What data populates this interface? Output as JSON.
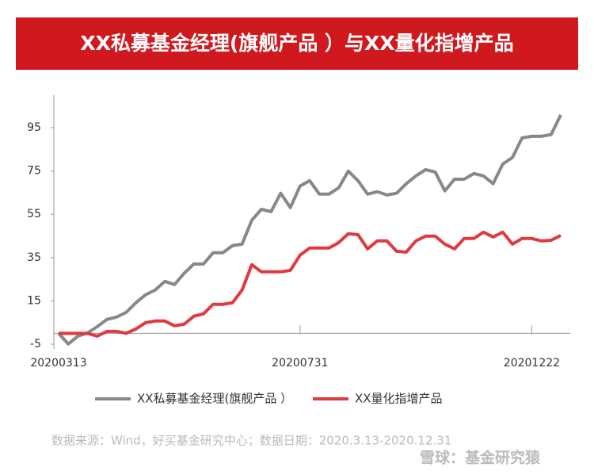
{
  "chart_data": {
    "type": "line",
    "title": "XX私募基金经理(旗舰产品 ）与XX量化指增产品",
    "categories": [
      "20200313",
      null,
      null,
      null,
      null,
      null,
      null,
      null,
      null,
      null,
      null,
      null,
      null,
      null,
      null,
      null,
      null,
      null,
      null,
      null,
      null,
      null,
      null,
      null,
      null,
      "20200731",
      null,
      null,
      null,
      null,
      null,
      null,
      null,
      null,
      null,
      null,
      null,
      null,
      null,
      null,
      null,
      null,
      null,
      null,
      null,
      null,
      null,
      null,
      null,
      "20201222",
      null,
      null,
      null
    ],
    "series": [
      {
        "name": "XX私募基金经理(旗舰产品 ）",
        "color": "#888888",
        "values": [
          0,
          -4.9,
          -1.3,
          0.2,
          3.1,
          6.4,
          7.5,
          9.7,
          14.1,
          17.8,
          20,
          24,
          22.5,
          27.7,
          32,
          32,
          37.2,
          37.2,
          40.5,
          41.2,
          52.2,
          57.3,
          56.2,
          64.7,
          58.1,
          68,
          70.5,
          64.3,
          64.3,
          67.2,
          74.9,
          70.5,
          64.3,
          65.4,
          63.9,
          64.7,
          69.1,
          72.7,
          75.6,
          74.5,
          65.8,
          71.2,
          71.2,
          73.8,
          72.7,
          69.1,
          78.2,
          81.2,
          90.3,
          91,
          91,
          91.8,
          100.9
        ]
      },
      {
        "name": "XX量化指增产品",
        "color": "#e03a3e",
        "values": [
          0,
          0,
          0,
          0,
          -1.3,
          0.9,
          0.9,
          0,
          2,
          4.9,
          5.7,
          5.7,
          3.5,
          4.2,
          7.9,
          9,
          13.4,
          13.4,
          14.1,
          20,
          31.7,
          28.4,
          28.4,
          28.4,
          29.1,
          36.1,
          39.4,
          39.4,
          39.4,
          41.9,
          46,
          45.6,
          39,
          42.7,
          42.7,
          37.9,
          37.5,
          42.7,
          44.9,
          44.9,
          41.2,
          39,
          43.8,
          43.8,
          46.7,
          44.5,
          46.7,
          41.2,
          43.8,
          43.8,
          42.7,
          43,
          45.2
        ]
      }
    ],
    "ylim": [
      -5,
      110
    ],
    "yticks": [
      -5,
      15,
      35,
      55,
      75,
      95
    ],
    "source": "数据来源：Wind，好买基金研究中心；数据日期：2020.3.13-2020.12.31",
    "watermark": "雪球：基金研究猿"
  }
}
